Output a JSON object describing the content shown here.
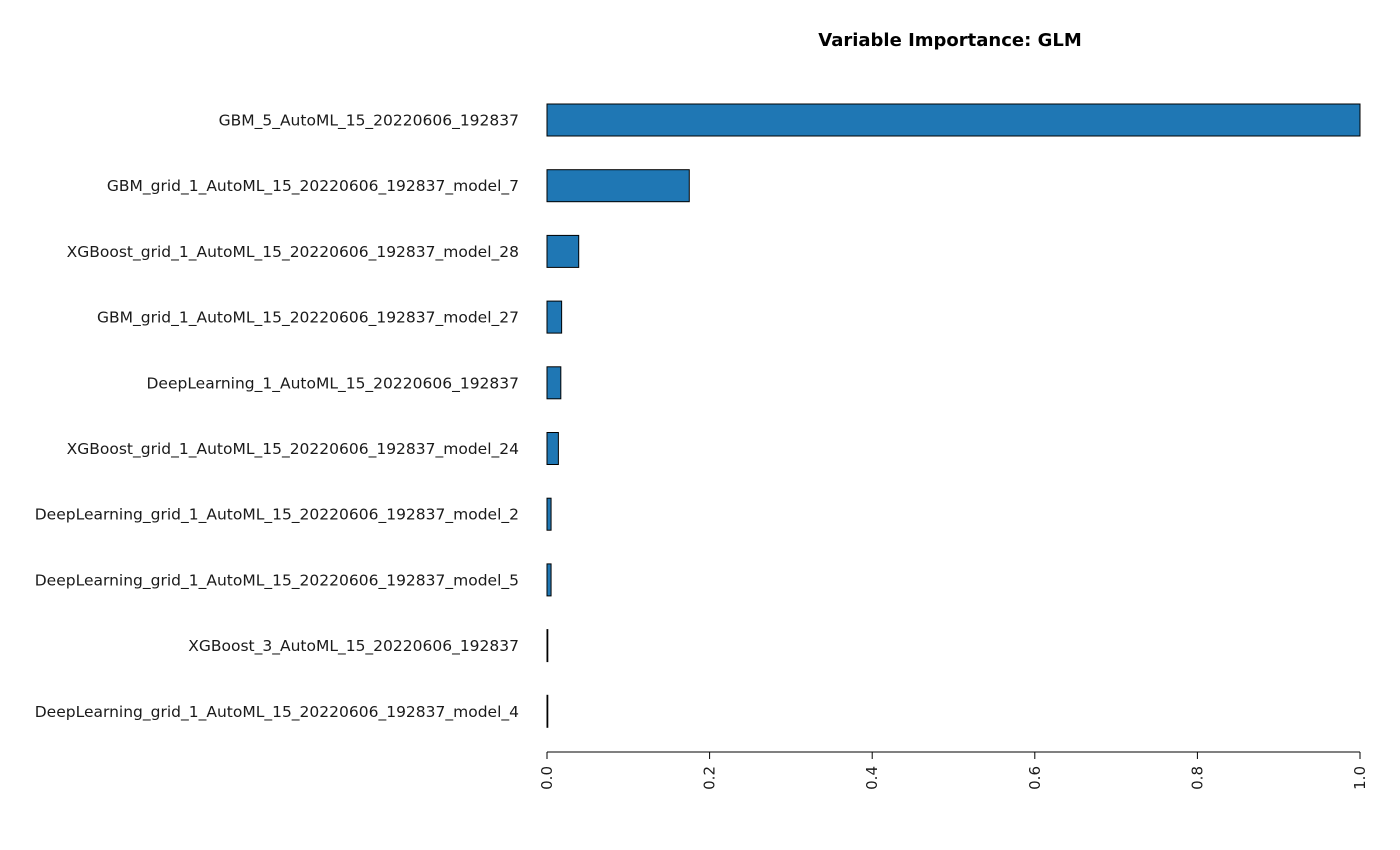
{
  "chart_data": {
    "type": "bar",
    "orientation": "horizontal",
    "title": "Variable Importance: GLM",
    "xlabel": "",
    "ylabel": "",
    "xlim": [
      0,
      1
    ],
    "x_ticks": [
      "0.0",
      "0.2",
      "0.4",
      "0.6",
      "0.8",
      "1.0"
    ],
    "x_tick_values": [
      0,
      0.2,
      0.4,
      0.6,
      0.8,
      1.0
    ],
    "categories": [
      "GBM_5_AutoML_15_20220606_192837",
      "GBM_grid_1_AutoML_15_20220606_192837_model_7",
      "XGBoost_grid_1_AutoML_15_20220606_192837_model_28",
      "GBM_grid_1_AutoML_15_20220606_192837_model_27",
      "DeepLearning_1_AutoML_15_20220606_192837",
      "XGBoost_grid_1_AutoML_15_20220606_192837_model_24",
      "DeepLearning_grid_1_AutoML_15_20220606_192837_model_2",
      "DeepLearning_grid_1_AutoML_15_20220606_192837_model_5",
      "XGBoost_3_AutoML_15_20220606_192837",
      "DeepLearning_grid_1_AutoML_15_20220606_192837_model_4"
    ],
    "values": [
      1.0,
      0.175,
      0.039,
      0.018,
      0.017,
      0.014,
      0.005,
      0.005,
      0.001,
      0.0
    ],
    "bar_color": "#1f77b4",
    "grid": false,
    "legend": "none"
  }
}
